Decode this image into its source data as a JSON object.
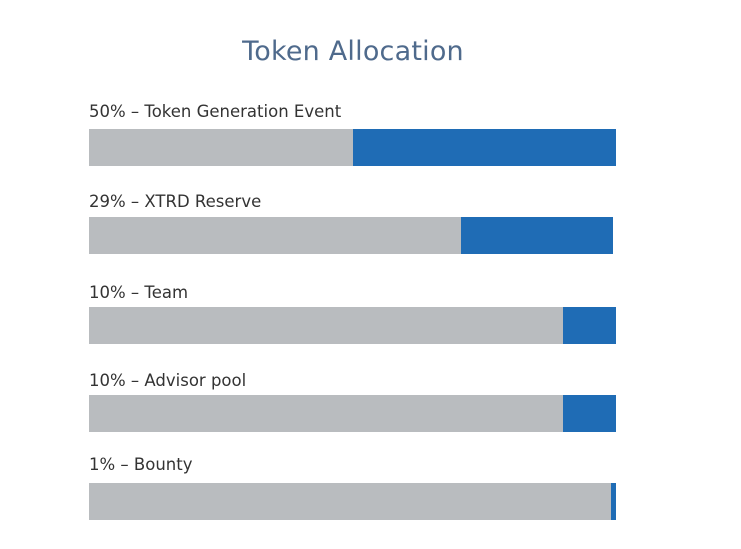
{
  "chart_data": {
    "type": "bar",
    "orientation": "horizontal-progress",
    "title": "Token Allocation",
    "categories": [
      "Token Generation Event",
      "XTRD Reserve",
      "Team",
      "Advisor pool",
      "Bounty"
    ],
    "values": [
      50,
      29,
      10,
      10,
      1
    ],
    "labels": [
      "50% – Token Generation Event",
      "29% – XTRD Reserve",
      "10% – Team",
      "10% – Advisor pool",
      "1% – Bounty"
    ],
    "unit": "%",
    "ylim": [
      0,
      100
    ],
    "colors": {
      "fill": "#1f6cb5",
      "track": "#b9bcbf",
      "title": "#4f6a8c",
      "label": "#333333"
    }
  }
}
